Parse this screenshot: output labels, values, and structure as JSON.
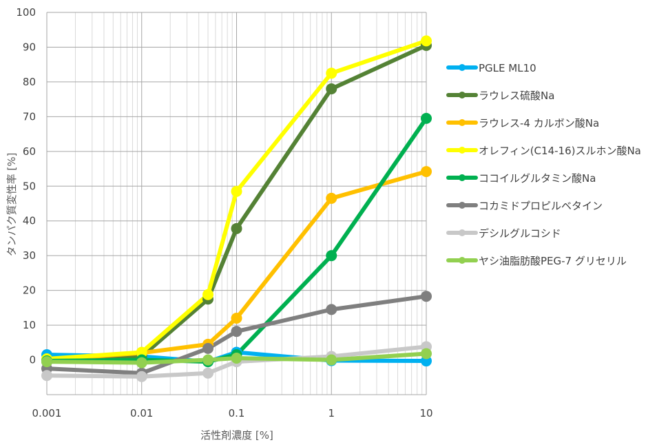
{
  "chart_data": {
    "type": "line",
    "xscale": "log",
    "x": [
      0.001,
      0.01,
      0.05,
      0.1,
      1,
      10
    ],
    "x_tick_labels": [
      "0.001",
      "0.01",
      "0.1",
      "1",
      "10"
    ],
    "x_ticks": [
      0.001,
      0.01,
      0.1,
      1,
      10
    ],
    "xlim": [
      0.001,
      10
    ],
    "ylim": [
      -10,
      100
    ],
    "y_tick_labels": [
      "0",
      "10",
      "20",
      "30",
      "40",
      "50",
      "60",
      "70",
      "80",
      "90",
      "100"
    ],
    "y_ticks": [
      0,
      10,
      20,
      30,
      40,
      50,
      60,
      70,
      80,
      90,
      100
    ],
    "xlabel": "活性剤濃度 [%]",
    "ylabel": "タンパク質変性率 [%]",
    "grid": true,
    "legend_position": "right",
    "series": [
      {
        "name": "PGLE ML10",
        "color": "#00b0f0",
        "values": [
          1.5,
          1.0,
          -0.5,
          2.2,
          -0.2,
          -0.3
        ]
      },
      {
        "name": "ラウレス硫酸Na",
        "color": "#548235",
        "values": [
          -0.5,
          1.0,
          17.5,
          37.8,
          78.0,
          90.5
        ]
      },
      {
        "name": "ラウレス-4 カルボン酸Na",
        "color": "#ffc000",
        "values": [
          0.0,
          2.0,
          4.5,
          12.0,
          46.5,
          54.2
        ]
      },
      {
        "name": "オレフィン(C14-16)スルホン酸Na",
        "color": "#ffff00",
        "values": [
          0.3,
          2.2,
          18.8,
          48.5,
          82.5,
          91.8
        ]
      },
      {
        "name": "ココイルグルタミン酸Na",
        "color": "#00b050",
        "values": [
          -0.3,
          0.0,
          -0.5,
          1.5,
          30.0,
          69.5
        ]
      },
      {
        "name": "コカミドプロピルベタイン",
        "color": "#7f7f7f",
        "values": [
          -2.5,
          -3.8,
          3.3,
          8.2,
          14.5,
          18.3
        ]
      },
      {
        "name": "デシルグルコシド",
        "color": "#c8c8c8",
        "values": [
          -4.5,
          -4.8,
          -3.8,
          -0.5,
          1.0,
          3.8
        ]
      },
      {
        "name": "ヤシ油脂肪酸PEG-7 グリセリル",
        "color": "#92d050",
        "values": [
          -0.5,
          -0.8,
          0.0,
          0.5,
          0.0,
          1.8
        ]
      }
    ]
  }
}
